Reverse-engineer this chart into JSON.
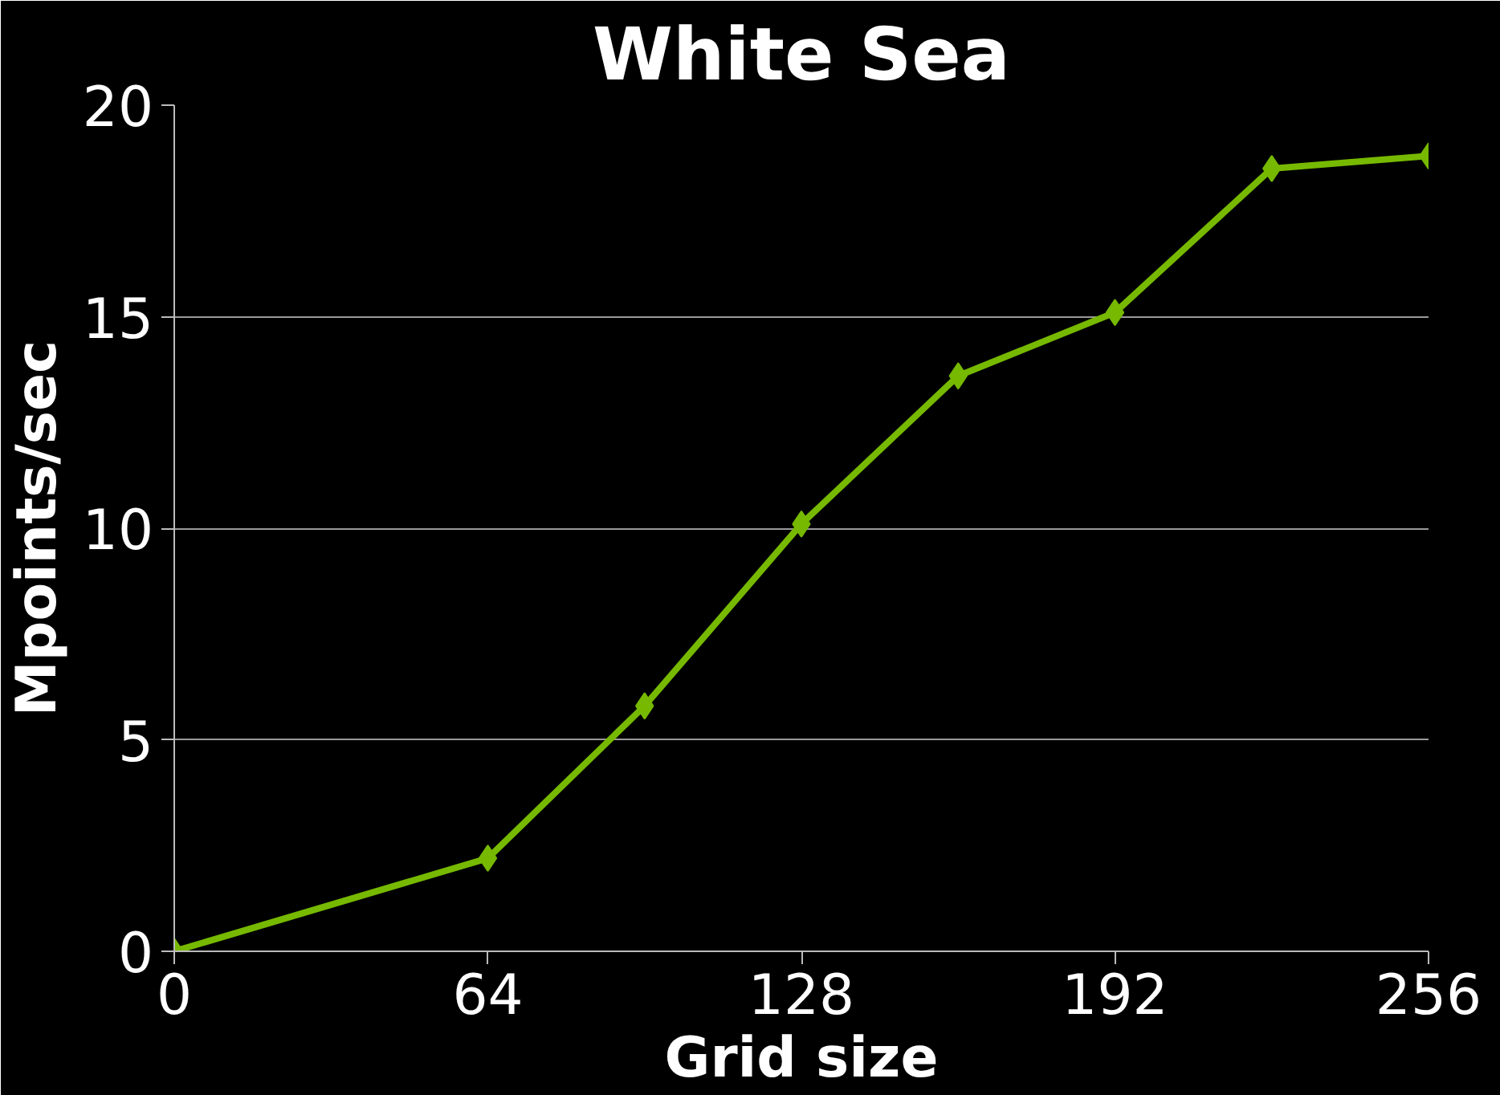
{
  "chart_data": {
    "type": "line",
    "title": "White Sea",
    "xlabel": "Grid size",
    "ylabel": "Mpoints/sec",
    "x": [
      0,
      64,
      96,
      128,
      160,
      192,
      224,
      256
    ],
    "series": [
      {
        "color": "#76b900",
        "values": [
          0,
          2.2,
          5.8,
          10.1,
          13.6,
          15.1,
          18.5,
          18.8
        ]
      }
    ],
    "xlim": [
      0,
      256
    ],
    "xticks": [
      0,
      64,
      128,
      192,
      256
    ],
    "ylim": [
      0,
      20
    ],
    "yticks": [
      0,
      5,
      10,
      15,
      20
    ],
    "grid": "y",
    "marker": "diamond",
    "line_style": "solid"
  }
}
